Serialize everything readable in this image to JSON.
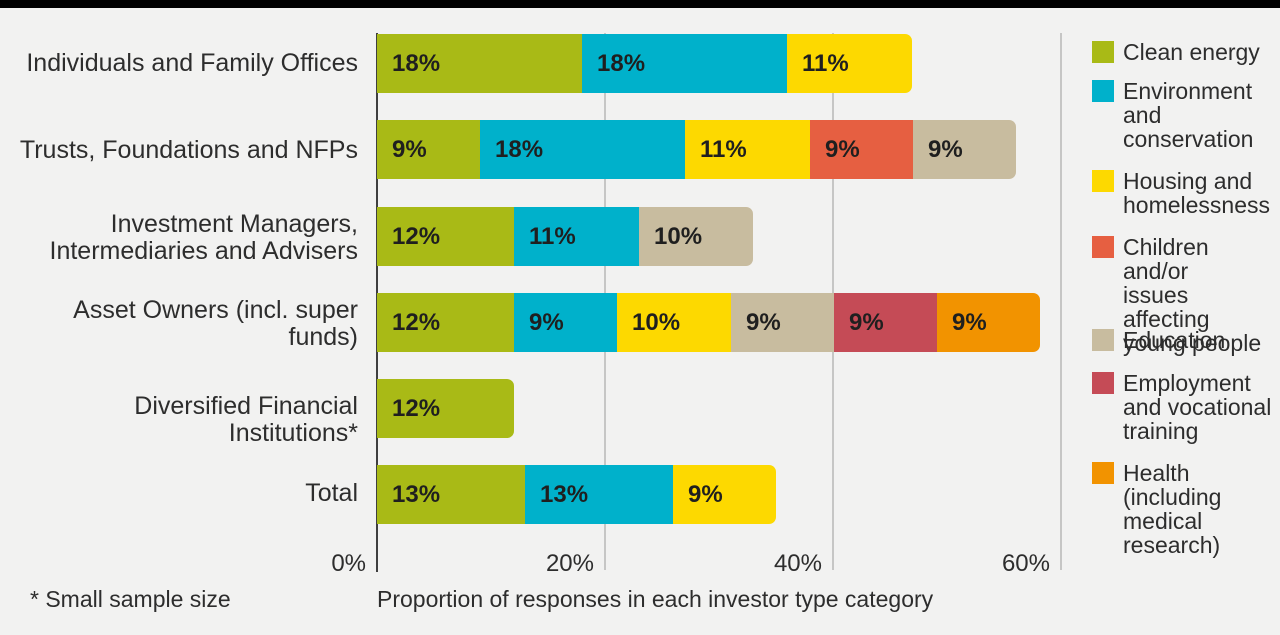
{
  "chart_data": {
    "type": "bar",
    "subtype": "horizontal-stacked",
    "title": "",
    "xlabel": "Proportion of responses in each investor type category",
    "ylabel": "",
    "xlim": [
      0,
      60
    ],
    "x_ticks": [
      "0%",
      "20%",
      "40%",
      "60%"
    ],
    "grid": "vertical",
    "legend_position": "right",
    "footnote": "* Small sample size",
    "colors": {
      "Clean energy": "#a9ba16",
      "Environment and conservation": "#00b1cb",
      "Housing and homelessness": "#fdd900",
      "Children and/or issues affecting young people": "#e65f41",
      "Education": "#c8bc9f",
      "Employment and vocational training": "#c54b56",
      "Health (including medical research)": "#f29300"
    },
    "rows": [
      {
        "category": "Individuals and Family Offices",
        "segments": [
          {
            "series": "Clean energy",
            "value": 18,
            "label": "18%"
          },
          {
            "series": "Environment and conservation",
            "value": 18,
            "label": "18%"
          },
          {
            "series": "Housing and homelessness",
            "value": 11,
            "label": "11%"
          }
        ]
      },
      {
        "category": "Trusts, Foundations and NFPs",
        "segments": [
          {
            "series": "Clean energy",
            "value": 9,
            "label": "9%"
          },
          {
            "series": "Environment and conservation",
            "value": 18,
            "label": "18%"
          },
          {
            "series": "Housing and homelessness",
            "value": 11,
            "label": "11%"
          },
          {
            "series": "Children and/or issues affecting young people",
            "value": 9,
            "label": "9%"
          },
          {
            "series": "Education",
            "value": 9,
            "label": "9%"
          }
        ]
      },
      {
        "category": "Investment Managers,\nIntermediaries and Advisers",
        "segments": [
          {
            "series": "Clean energy",
            "value": 12,
            "label": "12%"
          },
          {
            "series": "Environment and conservation",
            "value": 11,
            "label": "11%"
          },
          {
            "series": "Education",
            "value": 10,
            "label": "10%"
          }
        ]
      },
      {
        "category": "Asset Owners (incl. super\nfunds)",
        "segments": [
          {
            "series": "Clean energy",
            "value": 12,
            "label": "12%"
          },
          {
            "series": "Environment and conservation",
            "value": 9,
            "label": "9%"
          },
          {
            "series": "Housing and homelessness",
            "value": 10,
            "label": "10%"
          },
          {
            "series": "Education",
            "value": 9,
            "label": "9%"
          },
          {
            "series": "Employment and vocational training",
            "value": 9,
            "label": "9%"
          },
          {
            "series": "Health (including medical research)",
            "value": 9,
            "label": "9%"
          }
        ]
      },
      {
        "category": "Diversified Financial\nInstitutions*",
        "segments": [
          {
            "series": "Clean energy",
            "value": 12,
            "label": "12%"
          }
        ]
      },
      {
        "category": "Total",
        "segments": [
          {
            "series": "Clean energy",
            "value": 13,
            "label": "13%"
          },
          {
            "series": "Environment and conservation",
            "value": 13,
            "label": "13%"
          },
          {
            "series": "Housing and homelessness",
            "value": 9,
            "label": "9%"
          }
        ]
      }
    ]
  },
  "legend": {
    "items": [
      {
        "label": "Clean energy",
        "color": "#a9ba16"
      },
      {
        "label": "Environment\nand\nconservation",
        "color": "#00b1cb"
      },
      {
        "label": "Housing and\nhomelessness",
        "color": "#fdd900"
      },
      {
        "label": "Children and/or\nissues affecting\nyoung people",
        "color": "#e65f41"
      },
      {
        "label": "Education",
        "color": "#c8bc9f"
      },
      {
        "label": "Employment\nand vocational\ntraining",
        "color": "#c54b56"
      },
      {
        "label": "Health\n(including\nmedical\nresearch)",
        "color": "#f29300"
      }
    ]
  }
}
